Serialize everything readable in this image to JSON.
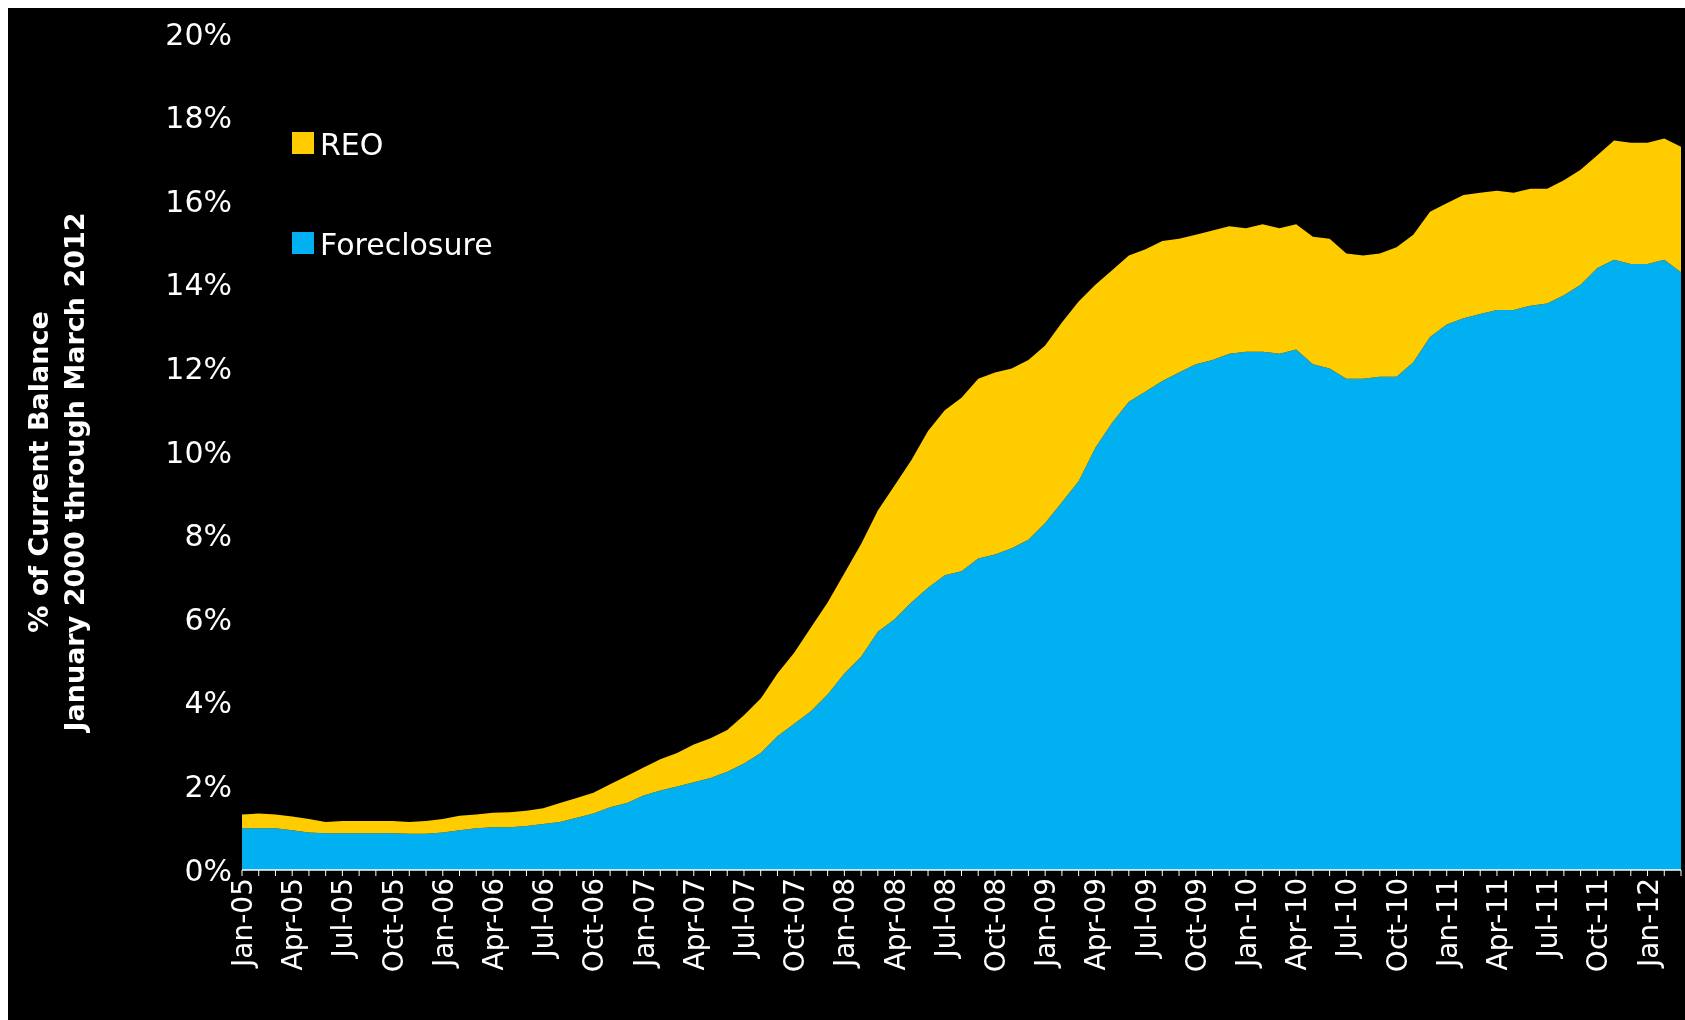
{
  "chart_data": {
    "type": "area",
    "stacked": true,
    "ylabel": "% of Current Balance\nJanuary 2000 through March 2012",
    "categories": [
      "Jan-05",
      null,
      null,
      "Apr-05",
      null,
      null,
      "Jul-05",
      null,
      null,
      "Oct-05",
      null,
      null,
      "Jan-06",
      null,
      null,
      "Apr-06",
      null,
      null,
      "Jul-06",
      null,
      null,
      "Oct-06",
      null,
      null,
      "Jan-07",
      null,
      null,
      "Apr-07",
      null,
      null,
      "Jul-07",
      null,
      null,
      "Oct-07",
      null,
      null,
      "Jan-08",
      null,
      null,
      "Apr-08",
      null,
      null,
      "Jul-08",
      null,
      null,
      "Oct-08",
      null,
      null,
      "Jan-09",
      null,
      null,
      "Apr-09",
      null,
      null,
      "Jul-09",
      null,
      null,
      "Oct-09",
      null,
      null,
      "Jan-10",
      null,
      null,
      "Apr-10",
      null,
      null,
      "Jul-10",
      null,
      null,
      "Oct-10",
      null,
      null,
      "Jan-11",
      null,
      null,
      "Apr-11",
      null,
      null,
      "Jul-11",
      null,
      null,
      "Oct-11",
      null,
      null,
      "Jan-12",
      null,
      null
    ],
    "series": [
      {
        "name": "Foreclosure",
        "color": "#00b0f0",
        "values": [
          1.0,
          1.0,
          1.0,
          0.95,
          0.9,
          0.88,
          0.88,
          0.88,
          0.88,
          0.88,
          0.87,
          0.87,
          0.9,
          0.95,
          1.0,
          1.02,
          1.02,
          1.05,
          1.1,
          1.15,
          1.25,
          1.35,
          1.5,
          1.6,
          1.78,
          1.9,
          2.0,
          2.1,
          2.2,
          2.35,
          2.55,
          2.8,
          3.2,
          3.5,
          3.8,
          4.2,
          4.7,
          5.1,
          5.7,
          6.0,
          6.4,
          6.75,
          7.05,
          7.15,
          7.45,
          7.55,
          7.7,
          7.9,
          8.3,
          8.8,
          9.3,
          10.1,
          10.7,
          11.2,
          11.45,
          11.7,
          11.9,
          12.1,
          12.2,
          12.35,
          12.4,
          12.4,
          12.35,
          12.45,
          12.1,
          12.0,
          11.75,
          11.75,
          11.8,
          11.8,
          12.15,
          12.75,
          13.05,
          13.2,
          13.3,
          13.4,
          13.4,
          13.5,
          13.55,
          13.75,
          14.0,
          14.4,
          14.6,
          14.5,
          14.5,
          14.6,
          14.3
        ]
      },
      {
        "name": "REO",
        "color": "#ffcc00",
        "values": [
          0.33,
          0.35,
          0.33,
          0.33,
          0.32,
          0.27,
          0.29,
          0.29,
          0.29,
          0.29,
          0.28,
          0.3,
          0.32,
          0.35,
          0.33,
          0.35,
          0.36,
          0.37,
          0.38,
          0.45,
          0.47,
          0.5,
          0.55,
          0.65,
          0.67,
          0.75,
          0.8,
          0.9,
          0.95,
          1.0,
          1.15,
          1.3,
          1.5,
          1.7,
          2.0,
          2.2,
          2.4,
          2.7,
          2.9,
          3.2,
          3.4,
          3.75,
          3.95,
          4.15,
          4.3,
          4.35,
          4.3,
          4.3,
          4.25,
          4.3,
          4.3,
          3.9,
          3.65,
          3.5,
          3.4,
          3.35,
          3.2,
          3.1,
          3.1,
          3.05,
          2.95,
          3.05,
          3.0,
          3.0,
          3.05,
          3.1,
          3.0,
          2.95,
          2.95,
          3.1,
          3.05,
          3.0,
          2.9,
          2.95,
          2.9,
          2.85,
          2.8,
          2.8,
          2.75,
          2.75,
          2.75,
          2.7,
          2.85,
          2.9,
          2.9,
          2.9,
          3.0
        ]
      }
    ],
    "ylim": [
      0,
      20
    ],
    "yticks": [
      {
        "value": 0,
        "label": "0%"
      },
      {
        "value": 2,
        "label": "2%"
      },
      {
        "value": 4,
        "label": "4%"
      },
      {
        "value": 6,
        "label": "6%"
      },
      {
        "value": 8,
        "label": "8%"
      },
      {
        "value": 10,
        "label": "10%"
      },
      {
        "value": 12,
        "label": "12%"
      },
      {
        "value": 14,
        "label": "14%"
      },
      {
        "value": 16,
        "label": "16%"
      },
      {
        "value": 18,
        "label": "18%"
      },
      {
        "value": 20,
        "label": "20%"
      }
    ],
    "legend": "top left"
  }
}
